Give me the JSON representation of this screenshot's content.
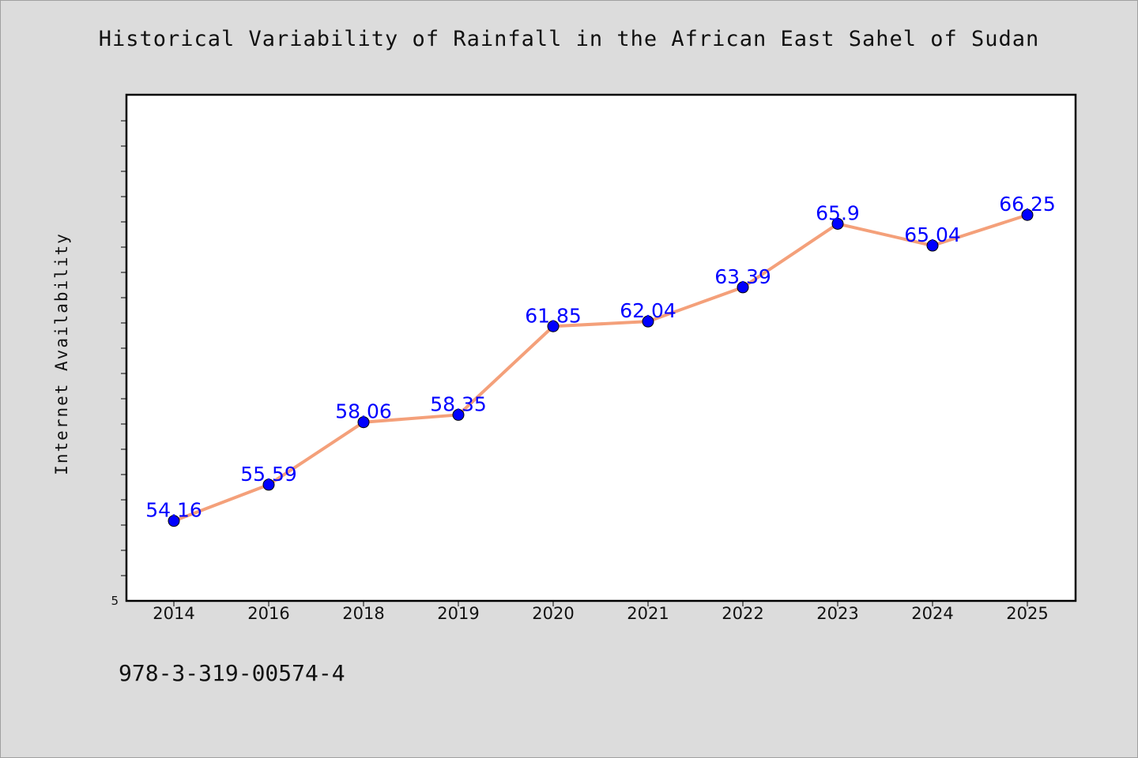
{
  "chart_data": {
    "type": "line",
    "title": "Historical Variability of Rainfall in the African East Sahel of Sudan",
    "xlabel": "",
    "ylabel": "Internet Availability",
    "categories": [
      "2014",
      "2016",
      "2018",
      "2019",
      "2020",
      "2021",
      "2022",
      "2023",
      "2024",
      "2025"
    ],
    "series": [
      {
        "values": [
          54.16,
          55.59,
          58.06,
          58.35,
          61.85,
          62.04,
          63.39,
          65.9,
          65.04,
          66.25
        ],
        "data_labels": [
          "54.16",
          "55.59",
          "58.06",
          "58.35",
          "61.85",
          "62.04",
          "63.39",
          "65.9",
          "65.04",
          "66.25"
        ],
        "line_color": "#f4a07a",
        "marker_color": "#0000ff"
      }
    ],
    "y_min_label": "5",
    "ylim": [
      51.0,
      71.0
    ],
    "grid": false,
    "legend": "none"
  },
  "footnote": "978-3-319-00574-4",
  "colors": {
    "background": "#dcdcdc",
    "plot_area": "#ffffff",
    "line": "#f4a07a",
    "marker": "#0000ff",
    "data_label": "#0000ff"
  }
}
